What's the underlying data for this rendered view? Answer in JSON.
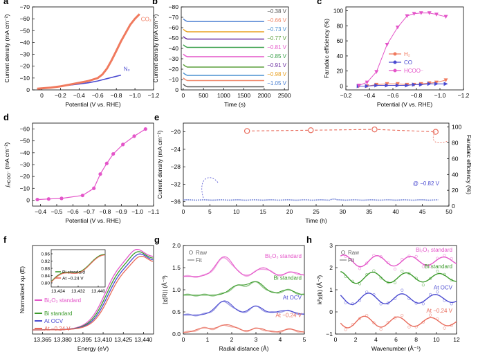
{
  "chart_data": [
    {
      "panel": "a",
      "type": "line",
      "xlabel": "Potential (V vs. RHE)",
      "ylabel": "Current density (mA cm⁻²)",
      "xlim": [
        0.1,
        -1.2
      ],
      "ylim": [
        -70,
        0
      ],
      "xticks": [
        "0",
        "−0.2",
        "−0.4",
        "−0.6",
        "−0.8",
        "−1.0",
        "−1.2"
      ],
      "yticks": [
        "0",
        "−10",
        "−20",
        "−30",
        "−40",
        "−50",
        "−60",
        "−70"
      ],
      "xtickvals": [
        0,
        -0.2,
        -0.4,
        -0.6,
        -0.8,
        -1.0,
        -1.2
      ],
      "ytickvals": [
        0,
        -10,
        -20,
        -30,
        -40,
        -50,
        -60,
        -70
      ],
      "series": [
        {
          "name": "N₂",
          "color": "#4a4ad0",
          "x": [
            0.05,
            -0.1,
            -0.2,
            -0.3,
            -0.4,
            -0.5,
            -0.6,
            -0.65,
            -0.7,
            -0.75,
            -0.8,
            -0.85
          ],
          "y": [
            -1,
            -2,
            -3,
            -4,
            -5,
            -6,
            -7.5,
            -8.5,
            -9.5,
            -10.5,
            -11.5,
            -12.5
          ]
        },
        {
          "name": "CO₂",
          "color": "#f07a5e",
          "x": [
            0.05,
            -0.1,
            -0.2,
            -0.3,
            -0.4,
            -0.5,
            -0.6,
            -0.65,
            -0.7,
            -0.75,
            -0.8,
            -0.85,
            -0.9,
            -0.95,
            -1.0,
            -1.05
          ],
          "y": [
            -1,
            -2,
            -3,
            -4.5,
            -6,
            -7.5,
            -10,
            -13,
            -18,
            -25,
            -33,
            -41,
            -48,
            -55,
            -60,
            -64
          ]
        }
      ]
    },
    {
      "panel": "b",
      "type": "line",
      "xlabel": "Time (s)",
      "ylabel": "Current density (mA cm⁻²)",
      "xlim": [
        -50,
        2600
      ],
      "ylim": [
        -80,
        0
      ],
      "xticks": [
        "0",
        "500",
        "1000",
        "1500",
        "2000",
        "2500"
      ],
      "yticks": [
        "0",
        "−10",
        "−20",
        "−30",
        "−40",
        "−50",
        "−60",
        "−70",
        "−80"
      ],
      "xtickvals": [
        0,
        500,
        1000,
        1500,
        2000,
        2500
      ],
      "ytickvals": [
        0,
        -10,
        -20,
        -30,
        -40,
        -50,
        -60,
        -70,
        -80
      ],
      "series": [
        {
          "name": "−0.38 V",
          "color": "#555555",
          "current": -3
        },
        {
          "name": "−0.66 V",
          "color": "#f0876a",
          "current": -9
        },
        {
          "name": "−0.73 V",
          "color": "#4a90d0",
          "current": -14
        },
        {
          "name": "−0.77 V",
          "color": "#5a9e3a",
          "current": -22
        },
        {
          "name": "−0.81 V",
          "color": "#e455c9",
          "current": -32
        },
        {
          "name": "−0.85 V",
          "color": "#3aa04a",
          "current": -41
        },
        {
          "name": "−0.91 V",
          "color": "#6a2ca0",
          "current": -49
        },
        {
          "name": "−0.98 V",
          "color": "#e8a020",
          "current": -56
        },
        {
          "name": "−1.05 V",
          "color": "#4a7fd0",
          "current": -66
        }
      ]
    },
    {
      "panel": "c",
      "type": "line",
      "xlabel": "Potential (V vs. RHE)",
      "ylabel": "Faradaic efficiency (%)",
      "xlim": [
        -0.2,
        -1.2
      ],
      "ylim": [
        -5,
        105
      ],
      "xticks": [
        "−0.2",
        "−0.4",
        "−0.6",
        "−0.8",
        "−1.0",
        "−1.2"
      ],
      "yticks": [
        "0",
        "20",
        "40",
        "60",
        "80",
        "100"
      ],
      "xtickvals": [
        -0.2,
        -0.4,
        -0.6,
        -0.8,
        -1.0,
        -1.2
      ],
      "ytickvals": [
        0,
        20,
        40,
        60,
        80,
        100
      ],
      "x": [
        -0.31,
        -0.38,
        -0.46,
        -0.55,
        -0.64,
        -0.72,
        -0.78,
        -0.84,
        -0.91,
        -0.97,
        -1.05
      ],
      "series": [
        {
          "name": "H₂",
          "color": "#f07a5e",
          "y": [
            0,
            0,
            2,
            3,
            3,
            2,
            2,
            3,
            4,
            5,
            8
          ]
        },
        {
          "name": "CO",
          "color": "#4a4ad0",
          "y": [
            0,
            0,
            1,
            1,
            1,
            1,
            2,
            2,
            3,
            3,
            3
          ]
        },
        {
          "name": "HCOO⁻",
          "color": "#e455c9",
          "y": [
            1,
            5,
            19,
            55,
            78,
            93,
            96,
            97,
            97,
            95,
            92
          ]
        }
      ]
    },
    {
      "panel": "d",
      "type": "line",
      "xlabel": "Potential (V vs. RHE)",
      "ylabel": "j HCOO⁻ (mA cm⁻²)",
      "ylabel_main": "j",
      "ylabel_sub": "HCOO⁻",
      "ylabel_unit": " (mA cm⁻²)",
      "xlim": [
        -0.35,
        -1.1
      ],
      "ylim": [
        -65,
        5
      ],
      "xticks": [
        "−0.4",
        "−0.5",
        "−0.6",
        "−0.7",
        "−0.8",
        "−0.9",
        "−1.0",
        "−1.1"
      ],
      "yticks": [
        "0",
        "−10",
        "−20",
        "−30",
        "−40",
        "−50",
        "−60"
      ],
      "xtickvals": [
        -0.4,
        -0.5,
        -0.6,
        -0.7,
        -0.8,
        -0.9,
        -1.0,
        -1.1
      ],
      "ytickvals": [
        0,
        -10,
        -20,
        -30,
        -40,
        -50,
        -60
      ],
      "x": [
        -0.38,
        -0.45,
        -0.53,
        -0.66,
        -0.73,
        -0.77,
        -0.81,
        -0.85,
        -0.91,
        -0.98,
        -1.05
      ],
      "y": [
        -0.5,
        -1,
        -1.5,
        -4,
        -10,
        -22,
        -31,
        -39,
        -47,
        -54,
        -60
      ],
      "color": "#e455c9"
    },
    {
      "panel": "e",
      "type": "line",
      "xlabel": "Time (h)",
      "ylabel": "Current density (mA cm⁻²)",
      "ylabel2": "Faradaic efficiency (%)",
      "xlim": [
        0,
        50
      ],
      "ylim": [
        -37,
        -18
      ],
      "y2lim": [
        0,
        105
      ],
      "xticks": [
        "0",
        "5",
        "10",
        "15",
        "20",
        "25",
        "30",
        "35",
        "40",
        "45",
        "50"
      ],
      "yticks": [
        "−36",
        "−32",
        "−28",
        "−24",
        "−20"
      ],
      "y2ticks": [
        "0",
        "20",
        "40",
        "60",
        "80",
        "100"
      ],
      "xtickvals": [
        0,
        5,
        10,
        15,
        20,
        25,
        30,
        35,
        40,
        45,
        50
      ],
      "ytickvals": [
        -36,
        -32,
        -28,
        -24,
        -20
      ],
      "y2tickvals": [
        0,
        20,
        40,
        60,
        80,
        100
      ],
      "annotation": "@ −0.82 V",
      "current": {
        "color": "#7a8ad8",
        "level": -35.6
      },
      "fe": {
        "color": "#e86a5a",
        "x": [
          12,
          24,
          36,
          47.5
        ],
        "y": [
          95,
          96,
          97,
          94
        ]
      }
    },
    {
      "panel": "f",
      "type": "line",
      "xlabel": "Energy (eV)",
      "ylabel": "Normalized xμ (E)",
      "xticks": [
        "13,365",
        "13,380",
        "13,395",
        "13,410",
        "13,425",
        "13,440"
      ],
      "inset": {
        "xticks": [
          "13,424",
          "13,432",
          "13,440"
        ],
        "yticks": [
          "0.96",
          "0.92",
          "0.88",
          "0.84",
          "0.80"
        ],
        "legend": [
          "Bi standard",
          "At −0.24 V"
        ]
      },
      "series": [
        {
          "name": "Bi₂O₃ standard",
          "color": "#e455c9"
        },
        {
          "name": "Bi standard",
          "color": "#3a9a2a"
        },
        {
          "name": "At OCV",
          "color": "#4a4ad0"
        },
        {
          "name": "At −0.24 V",
          "color": "#e86a5a"
        }
      ]
    },
    {
      "panel": "g",
      "type": "line",
      "xlabel": "Radial distance (Å)",
      "ylabel": "|χ(R)| (Å⁻³)",
      "xlim": [
        0,
        5
      ],
      "ylim": [
        0,
        2.0
      ],
      "xticks": [
        "0",
        "1",
        "2",
        "3",
        "4",
        "5"
      ],
      "yticks": [
        "0.0",
        "0.5",
        "1.0",
        "1.5",
        "2.0"
      ],
      "xtickvals": [
        0,
        1,
        2,
        3,
        4,
        5
      ],
      "ytickvals": [
        0,
        0.5,
        1.0,
        1.5,
        2.0
      ],
      "legend": [
        "Raw",
        "Fit"
      ],
      "series": [
        {
          "name": "Bi₂O₃ standard",
          "color": "#e455c9",
          "offset": 1.3
        },
        {
          "name": "Bi standard",
          "color": "#3a9a2a",
          "offset": 0.88
        },
        {
          "name": "At OCV",
          "color": "#4a4ad0",
          "offset": 0.43
        },
        {
          "name": "At −0.24 V",
          "color": "#e86a5a",
          "offset": 0.03
        }
      ]
    },
    {
      "panel": "h",
      "type": "line",
      "xlabel": "Wavenumber (Å⁻¹)",
      "ylabel": "k²χ(k) (Å⁻²)",
      "xlim": [
        0,
        12
      ],
      "ylim": [
        -1,
        3
      ],
      "xticks": [
        "0",
        "2",
        "4",
        "6",
        "8",
        "10",
        "12"
      ],
      "yticks": [
        "−1",
        "0",
        "1",
        "2",
        "3"
      ],
      "xtickvals": [
        0,
        2,
        4,
        6,
        8,
        10,
        12
      ],
      "ytickvals": [
        -1,
        0,
        1,
        2,
        3
      ],
      "legend": [
        "Raw",
        "Fit"
      ],
      "series": [
        {
          "name": "Bi₂O₃ standard",
          "color": "#e455c9",
          "offset": 2.3
        },
        {
          "name": "Bi standard",
          "color": "#3a9a2a",
          "offset": 1.55
        },
        {
          "name": "At OCV",
          "color": "#4a4ad0",
          "offset": 0.6
        },
        {
          "name": "At −0.24 V",
          "color": "#e86a5a",
          "offset": -0.45
        }
      ]
    }
  ]
}
